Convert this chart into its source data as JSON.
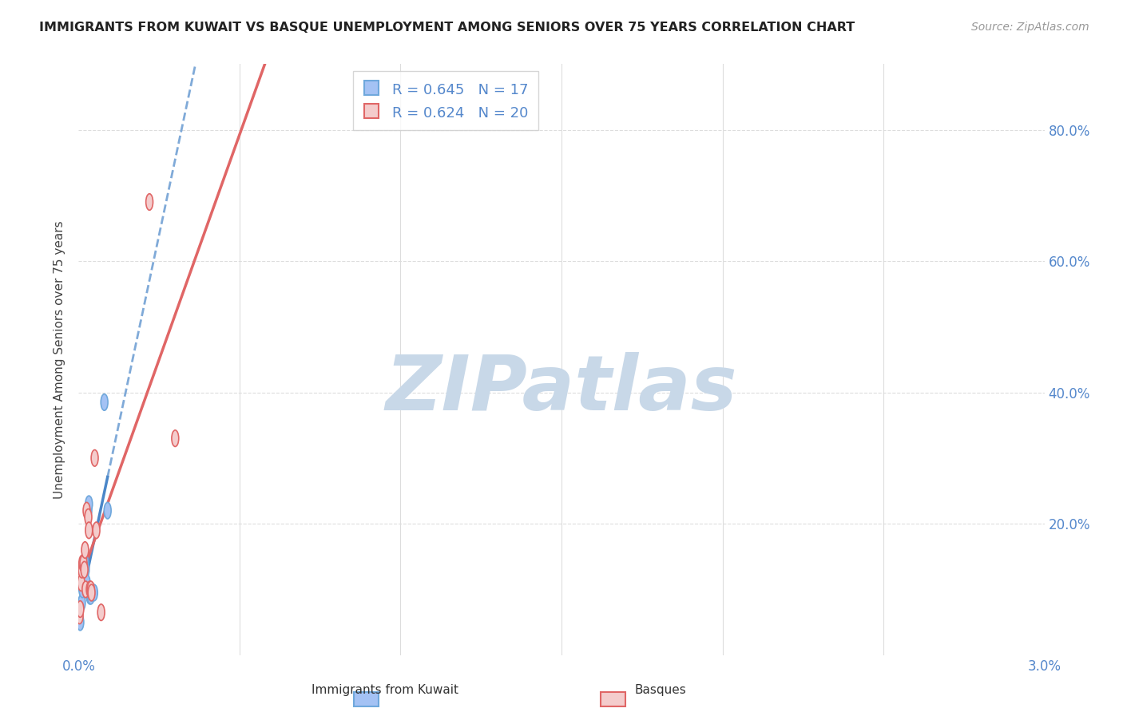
{
  "title": "IMMIGRANTS FROM KUWAIT VS BASQUE UNEMPLOYMENT AMONG SENIORS OVER 75 YEARS CORRELATION CHART",
  "source": "Source: ZipAtlas.com",
  "ylabel": "Unemployment Among Seniors over 75 years",
  "legend_text": [
    {
      "color": "#6fa8dc",
      "R": "0.645",
      "N": "17"
    },
    {
      "color": "#ea9999",
      "R": "0.624",
      "N": "20"
    }
  ],
  "legend_labels": [
    "Immigrants from Kuwait",
    "Basques"
  ],
  "kuwait_x": [
    5e-05,
    0.0001,
    0.00012,
    0.00015,
    0.00018,
    0.0002,
    0.00022,
    0.00025,
    0.0003,
    0.00032,
    0.00035,
    0.00038,
    0.0004,
    0.00042,
    0.00048,
    0.0008,
    0.0009
  ],
  "kuwait_y": [
    0.05,
    0.08,
    0.1,
    0.12,
    0.13,
    0.14,
    0.13,
    0.11,
    0.22,
    0.23,
    0.09,
    0.09,
    0.095,
    0.095,
    0.095,
    0.385,
    0.22
  ],
  "basque_x": [
    3e-05,
    5e-05,
    8e-05,
    0.0001,
    0.00012,
    0.00015,
    0.00018,
    0.0002,
    0.00022,
    0.00025,
    0.0003,
    0.00032,
    0.00035,
    0.00038,
    0.0004,
    0.0005,
    0.00055,
    0.0007,
    0.0022,
    0.003
  ],
  "basque_y": [
    0.06,
    0.07,
    0.11,
    0.13,
    0.14,
    0.14,
    0.13,
    0.16,
    0.1,
    0.22,
    0.21,
    0.19,
    0.1,
    0.1,
    0.095,
    0.3,
    0.19,
    0.065,
    0.69,
    0.33
  ],
  "xlim": [
    0.0,
    0.03
  ],
  "ylim": [
    0.0,
    0.9
  ],
  "background_color": "#ffffff",
  "watermark": "ZIPatlas",
  "watermark_color": "#c8d8e8",
  "grid_color": "#dddddd",
  "scatter_size_kuwait": 300,
  "scatter_size_basque": 300,
  "scatter_color_kuwait": "#a4c2f4",
  "scatter_edge_kuwait": "#6fa8dc",
  "scatter_color_basque": "#f4cccc",
  "scatter_edge_basque": "#e06666",
  "trendline_color_kuwait": "#4a86c8",
  "trendline_color_basque": "#e06666",
  "trendline_style_kuwait": "-",
  "trendline_style_basque": "-",
  "trendline_ext_style_kuwait": "--"
}
